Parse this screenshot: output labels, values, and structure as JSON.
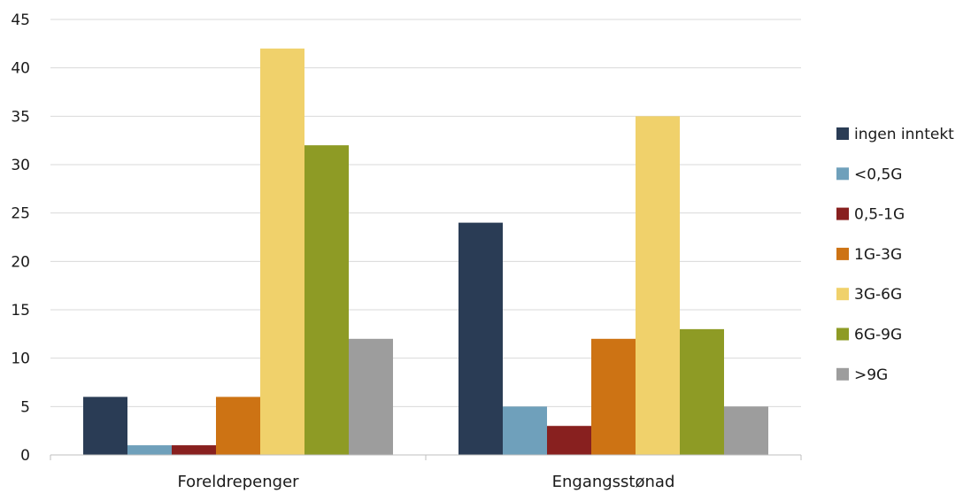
{
  "chart_data": {
    "type": "bar",
    "title": "",
    "xlabel": "",
    "ylabel": "",
    "ylim": [
      0,
      45
    ],
    "ytick_step": 5,
    "yticks": [
      "0",
      "5",
      "10",
      "15",
      "20",
      "25",
      "30",
      "35",
      "40",
      "45"
    ],
    "grid": true,
    "legend_position": "right",
    "categories": [
      "Foreldrepenger",
      "Engangsstønad"
    ],
    "series": [
      {
        "name": "ingen inntekt",
        "color": "#2a3c55",
        "values": [
          6,
          24
        ]
      },
      {
        "name": "<0,5G",
        "color": "#6fa0bb",
        "values": [
          1,
          5
        ]
      },
      {
        "name": "0,5-1G",
        "color": "#88201f",
        "values": [
          1,
          3
        ]
      },
      {
        "name": "1G-3G",
        "color": "#cd7314",
        "values": [
          6,
          12
        ]
      },
      {
        "name": "3G-6G",
        "color": "#f0d16b",
        "values": [
          42,
          35
        ]
      },
      {
        "name": "6G-9G",
        "color": "#8e9b25",
        "values": [
          32,
          13
        ]
      },
      {
        "name": ">9G",
        "color": "#9d9d9d",
        "values": [
          12,
          5
        ]
      }
    ]
  }
}
